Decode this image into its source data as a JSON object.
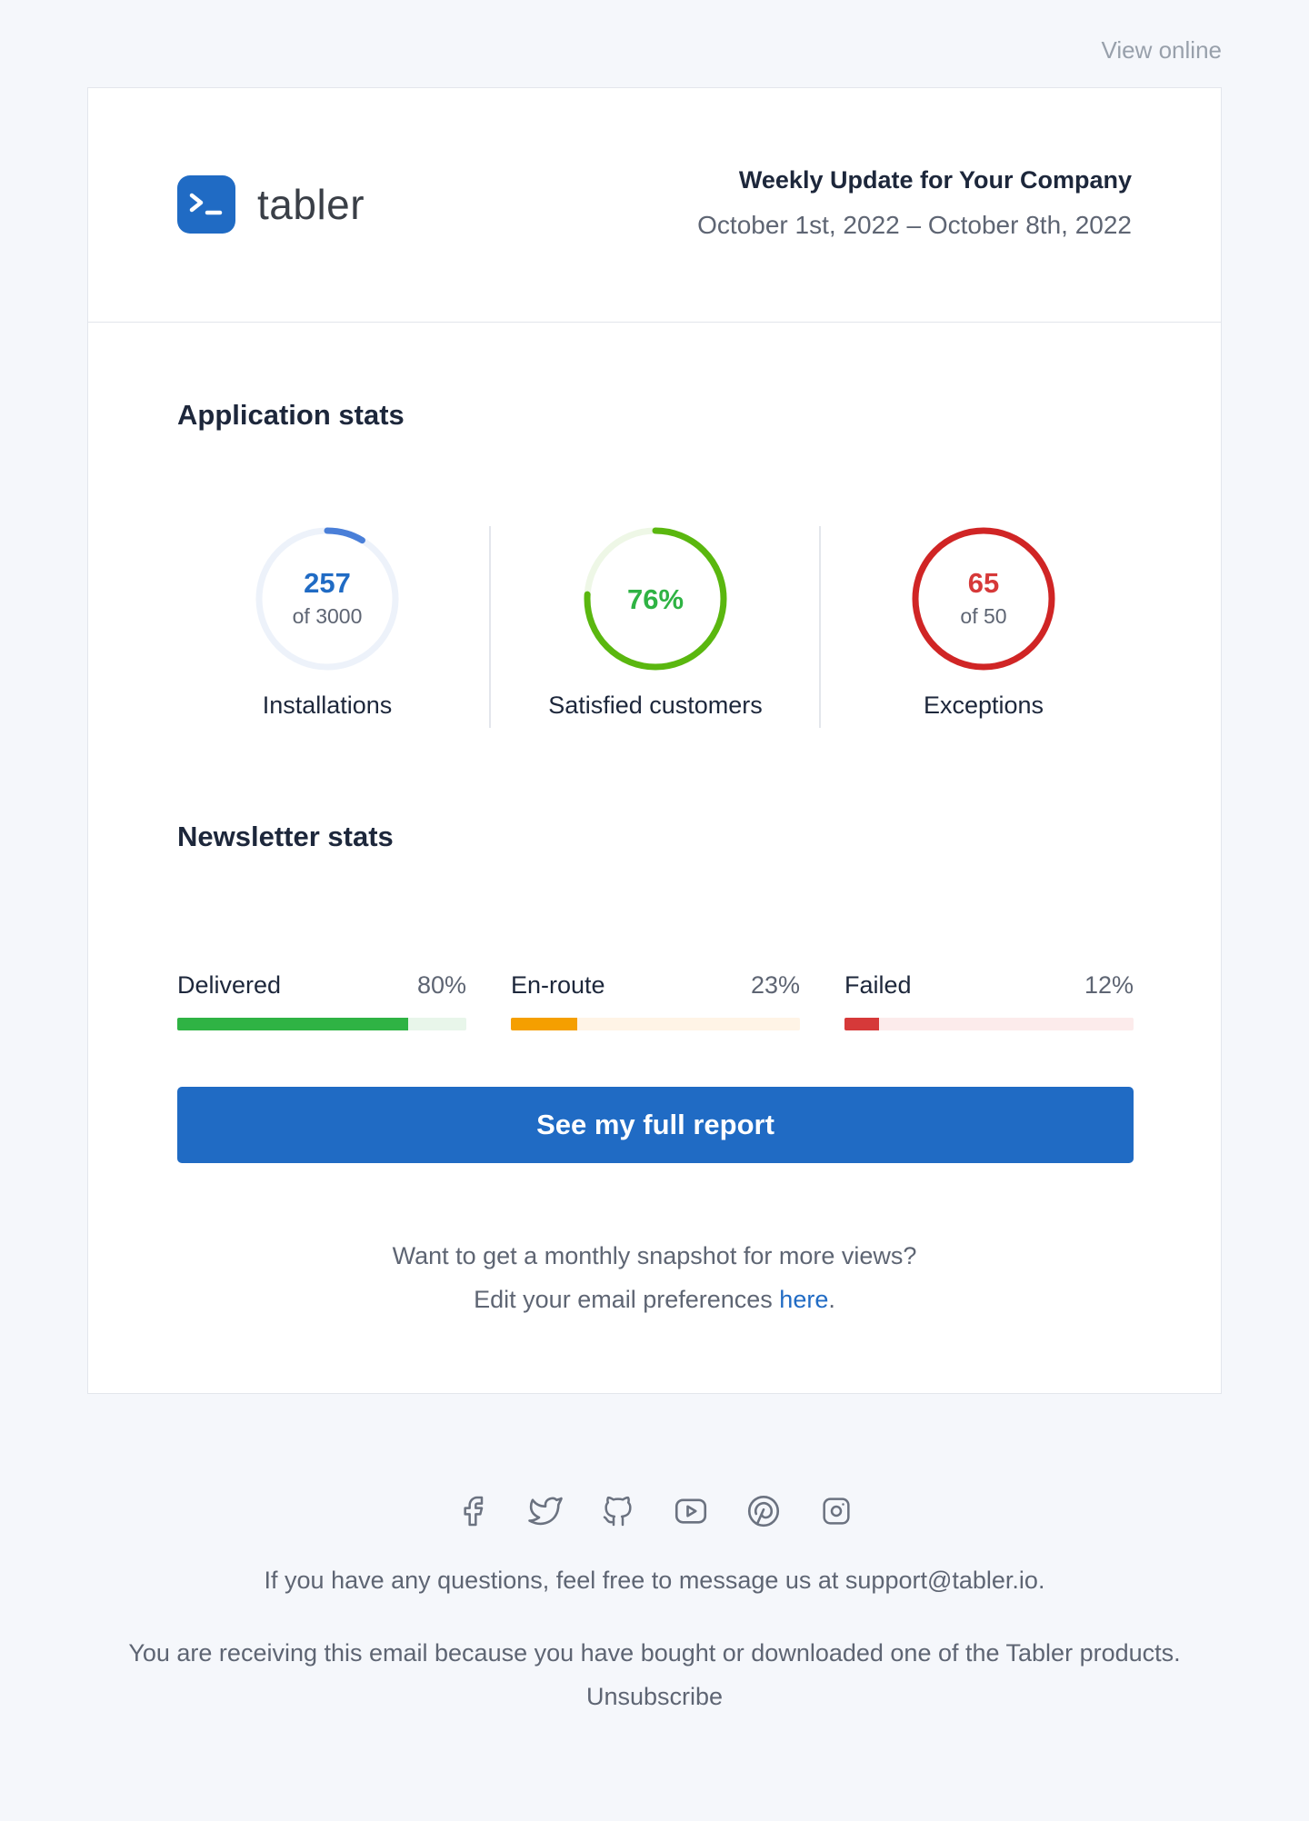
{
  "top": {
    "view_online": "View online"
  },
  "header": {
    "brand": "tabler",
    "title": "Weekly Update for Your Company",
    "date_range": "October 1st, 2022 – October 8th, 2022"
  },
  "app_stats": {
    "title": "Application stats",
    "items": [
      {
        "value": "257",
        "sub": "of 3000",
        "label": "Installations",
        "fraction": 0.0857,
        "color": "#4a7fd8",
        "track": "#edf2fa"
      },
      {
        "value": "76%",
        "label": "Satisfied customers",
        "fraction": 0.76,
        "color": "#5ab70f",
        "track": "#eef7e6"
      },
      {
        "value": "65",
        "sub": "of 50",
        "label": "Exceptions",
        "fraction": 1.0,
        "color": "#d02525",
        "track": "#fbe9e9"
      }
    ]
  },
  "newsletter": {
    "title": "Newsletter stats",
    "items": [
      {
        "label": "Delivered",
        "pct": "80%",
        "fraction": 0.8,
        "color": "#2fb344",
        "track": "#e8f6ea"
      },
      {
        "label": "En-route",
        "pct": "23%",
        "fraction": 0.23,
        "color": "#f59f00",
        "track": "#fff4e6"
      },
      {
        "label": "Failed",
        "pct": "12%",
        "fraction": 0.12,
        "color": "#d63939",
        "track": "#fcebeb"
      }
    ]
  },
  "cta": {
    "label": "See my full report"
  },
  "note": {
    "line1": "Want to get a monthly snapshot for more views?",
    "line2_prefix": "Edit your email preferences ",
    "line2_link": "here",
    "line2_suffix": "."
  },
  "socials": [
    "facebook-icon",
    "twitter-icon",
    "github-icon",
    "youtube-icon",
    "pinterest-icon",
    "instagram-icon"
  ],
  "footer": {
    "contact": "If you have any questions, feel free to message us at support@tabler.io.",
    "reason": "You are receiving this email because you have bought or downloaded one of the Tabler products.",
    "unsubscribe": "Unsubscribe"
  },
  "colors": {
    "brand": "#206bc4",
    "text": "#1d273b",
    "muted": "#5e6573",
    "background": "#f5f7fb"
  }
}
